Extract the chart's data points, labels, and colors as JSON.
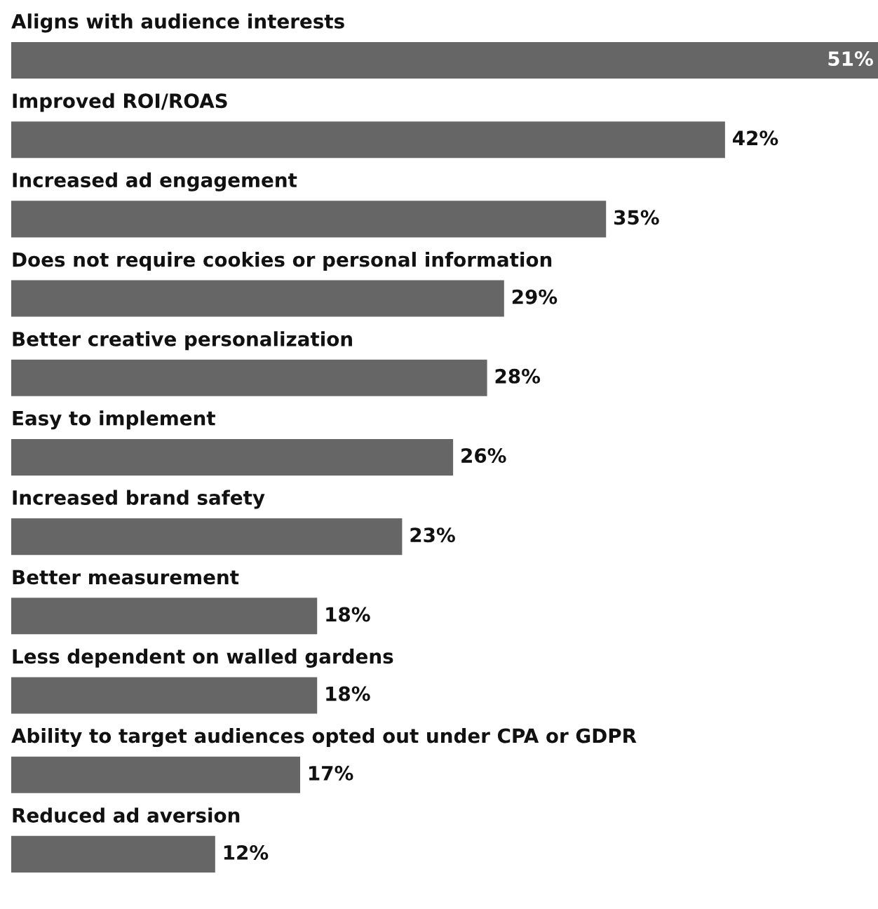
{
  "chart_data": {
    "type": "bar",
    "orientation": "horizontal",
    "categories": [
      "Aligns with audience interests",
      "Improved ROI/ROAS",
      "Increased ad engagement",
      "Does not require cookies or personal information",
      "Better creative personalization",
      "Easy to implement",
      "Increased brand safety",
      "Better measurement",
      "Less dependent on walled gardens",
      "Ability to target audiences opted out under CPA or GDPR",
      "Reduced ad aversion"
    ],
    "values": [
      51,
      42,
      35,
      29,
      28,
      26,
      23,
      18,
      18,
      17,
      12
    ],
    "value_labels": [
      "51%",
      "42%",
      "35%",
      "29%",
      "28%",
      "26%",
      "23%",
      "18%",
      "18%",
      "17%",
      "12%"
    ],
    "color": "#666666"
  }
}
